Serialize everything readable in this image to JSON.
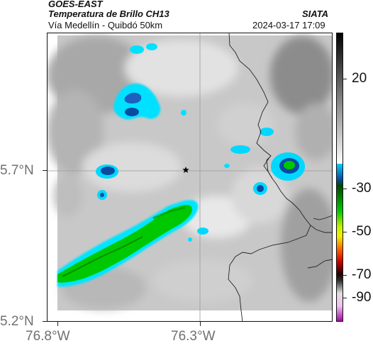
{
  "header": {
    "satellite": "GOES-EAST",
    "product": "Temperatura de Brillo CH13",
    "route": "Vía Medellín - Quibdó 50km",
    "org": "SIATA",
    "timestamp": "2024-03-17 17:09"
  },
  "map": {
    "lat_labels": [
      "5.7°N",
      "5.2°N"
    ],
    "lon_labels": [
      "76.8°W",
      "76.3°W"
    ],
    "marker_icon": "star-icon"
  },
  "colorbar": {
    "tick_labels": [
      "20",
      "-30",
      "-50",
      "-70",
      "-90"
    ],
    "colors": {
      "black": "#000000",
      "cyan": "#00d0ff",
      "blue": "#0a4aa0",
      "green": "#00c800",
      "yellow": "#f0f000",
      "orange": "#ff6600",
      "red": "#cc0000",
      "magenta": "#c040c0"
    }
  }
}
